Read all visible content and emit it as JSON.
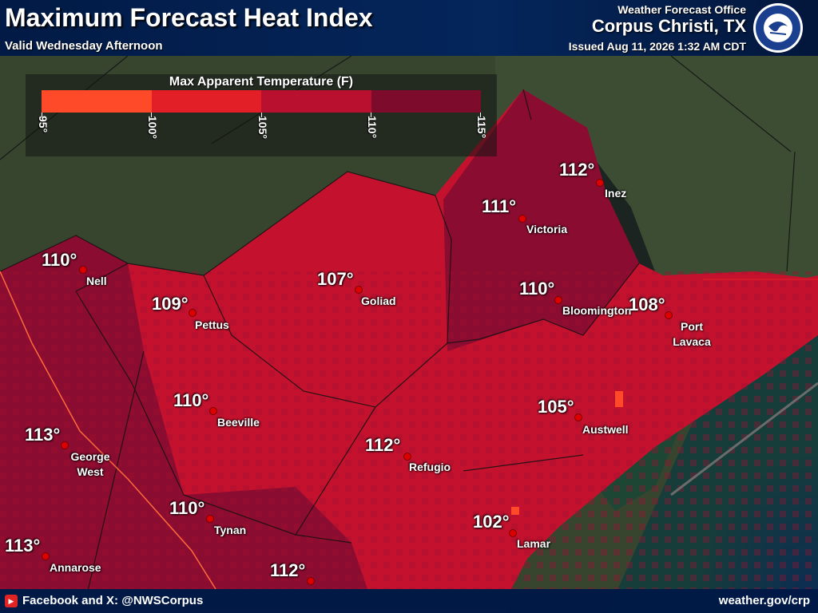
{
  "header": {
    "title": "Maximum Forecast Heat Index",
    "subtitle": "Valid Wednesday Afternoon",
    "office_label": "Weather Forecast Office",
    "office_city": "Corpus Christi, TX",
    "issued": "Issued Aug 11, 2026 1:32 AM CDT",
    "logo_text": "NATIONAL WEATHER SERVICE"
  },
  "legend": {
    "title": "Max Apparent Temperature (F)",
    "ticks": [
      "95°",
      "100°",
      "105°",
      "110°",
      "115°"
    ],
    "colors": [
      "#ff4a2a",
      "#e21e26",
      "#b8102e",
      "#7d0b2b"
    ]
  },
  "locations": [
    {
      "name": "Inez",
      "temp": "112°"
    },
    {
      "name": "Victoria",
      "temp": "111°"
    },
    {
      "name": "Nell",
      "temp": "110°"
    },
    {
      "name": "Goliad",
      "temp": "107°"
    },
    {
      "name": "Pettus",
      "temp": "109°"
    },
    {
      "name": "Bloomington",
      "temp": "110°"
    },
    {
      "name": "Port Lavaca",
      "temp": "108°"
    },
    {
      "name": "Beeville",
      "temp": "110°"
    },
    {
      "name": "Austwell",
      "temp": "105°"
    },
    {
      "name": "George West",
      "temp": "113°"
    },
    {
      "name": "Refugio",
      "temp": "112°"
    },
    {
      "name": "Tynan",
      "temp": "110°"
    },
    {
      "name": "Lamar",
      "temp": "102°"
    },
    {
      "name": "Annarose",
      "temp": "113°"
    },
    {
      "name": "",
      "temp": "112°"
    }
  ],
  "footer": {
    "social": "Facebook and X: @NWSCorpus",
    "url": "weather.gov/crp"
  }
}
